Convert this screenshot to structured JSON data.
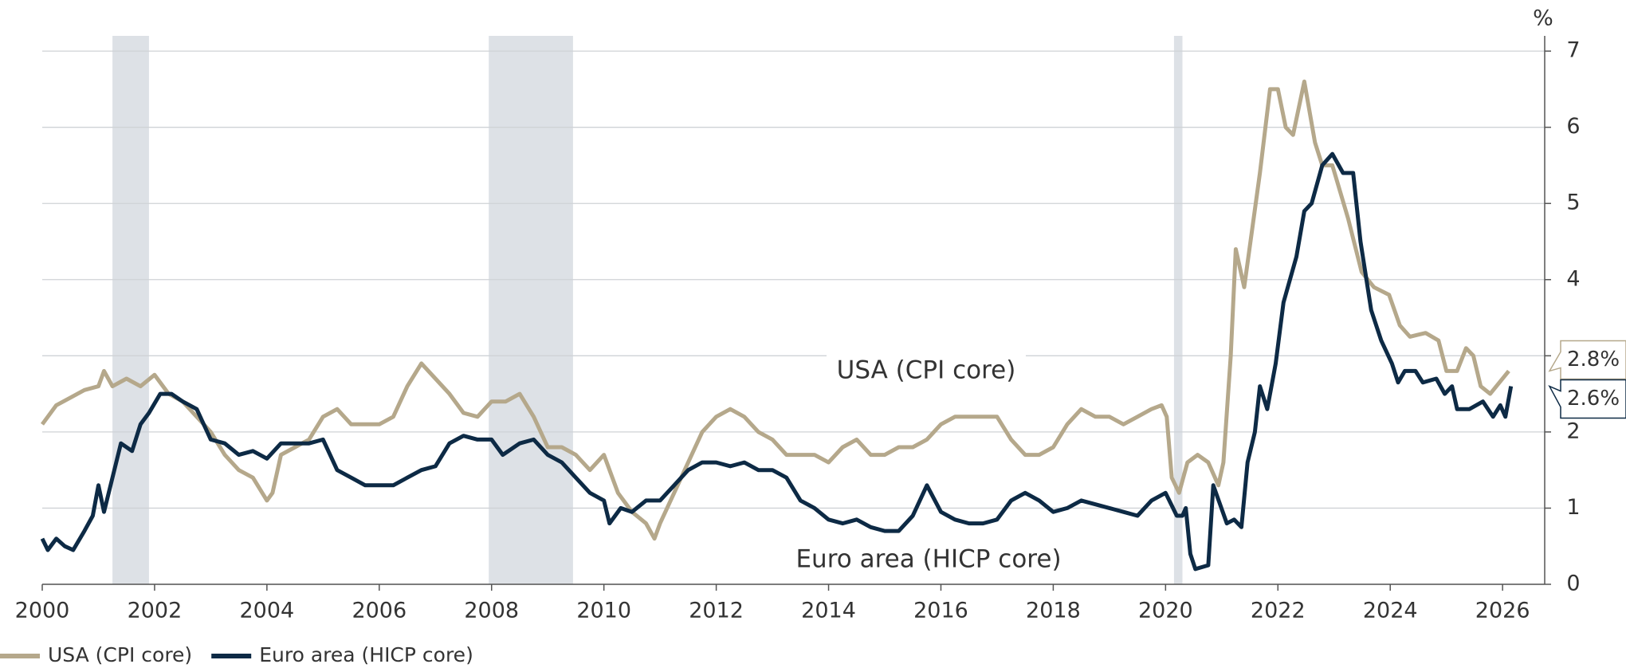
{
  "chart_data": {
    "type": "line",
    "y_unit_label": "%",
    "xlim": [
      2000,
      2026.75
    ],
    "xticks": [
      2000,
      2002,
      2004,
      2006,
      2008,
      2010,
      2012,
      2014,
      2016,
      2018,
      2020,
      2022,
      2024,
      2026
    ],
    "ylim": [
      0,
      7.2
    ],
    "yticks": [
      0,
      1,
      2,
      3,
      4,
      5,
      6,
      7
    ],
    "grid": true,
    "legend": "bottom-left",
    "shaded_periods": [
      [
        2001.25,
        2001.9
      ],
      [
        2007.95,
        2009.45
      ],
      [
        2020.15,
        2020.3
      ]
    ],
    "shade_color": "#dde1e6",
    "series": [
      {
        "name": "USA (CPI core)",
        "color": "#b5a88b",
        "x": [
          2000.0,
          2000.25,
          2000.5,
          2000.75,
          2001.0,
          2001.1,
          2001.25,
          2001.5,
          2001.75,
          2002.0,
          2002.25,
          2002.5,
          2002.75,
          2003.0,
          2003.25,
          2003.5,
          2003.75,
          2004.0,
          2004.1,
          2004.25,
          2004.5,
          2004.75,
          2005.0,
          2005.25,
          2005.5,
          2005.75,
          2006.0,
          2006.25,
          2006.5,
          2006.75,
          2007.0,
          2007.25,
          2007.5,
          2007.75,
          2008.0,
          2008.25,
          2008.5,
          2008.75,
          2009.0,
          2009.25,
          2009.5,
          2009.75,
          2010.0,
          2010.25,
          2010.5,
          2010.75,
          2010.9,
          2011.0,
          2011.25,
          2011.5,
          2011.75,
          2012.0,
          2012.25,
          2012.5,
          2012.75,
          2013.0,
          2013.25,
          2013.5,
          2013.75,
          2014.0,
          2014.25,
          2014.5,
          2014.75,
          2015.0,
          2015.25,
          2015.5,
          2015.75,
          2016.0,
          2016.25,
          2016.5,
          2016.75,
          2017.0,
          2017.25,
          2017.5,
          2017.75,
          2018.0,
          2018.25,
          2018.5,
          2018.75,
          2019.0,
          2019.25,
          2019.5,
          2019.75,
          2019.93,
          2020.02,
          2020.11,
          2020.24,
          2020.39,
          2020.57,
          2020.76,
          2020.94,
          2021.03,
          2021.16,
          2021.25,
          2021.4,
          2021.53,
          2021.68,
          2021.86,
          2022.0,
          2022.14,
          2022.27,
          2022.47,
          2022.66,
          2022.79,
          2022.97,
          2023.25,
          2023.49,
          2023.71,
          2023.98,
          2024.17,
          2024.35,
          2024.63,
          2024.86,
          2025.0,
          2025.19,
          2025.35,
          2025.48,
          2025.61,
          2025.78,
          2026.11
        ],
        "values": [
          2.1,
          2.35,
          2.45,
          2.55,
          2.6,
          2.8,
          2.6,
          2.7,
          2.6,
          2.75,
          2.5,
          2.4,
          2.2,
          2.0,
          1.7,
          1.5,
          1.4,
          1.1,
          1.2,
          1.7,
          1.8,
          1.9,
          2.2,
          2.3,
          2.1,
          2.1,
          2.1,
          2.2,
          2.6,
          2.9,
          2.7,
          2.5,
          2.25,
          2.2,
          2.4,
          2.4,
          2.5,
          2.2,
          1.8,
          1.8,
          1.7,
          1.5,
          1.7,
          1.2,
          0.95,
          0.8,
          0.6,
          0.8,
          1.2,
          1.6,
          2.0,
          2.2,
          2.3,
          2.2,
          2.0,
          1.9,
          1.7,
          1.7,
          1.7,
          1.6,
          1.8,
          1.9,
          1.7,
          1.7,
          1.8,
          1.8,
          1.9,
          2.1,
          2.2,
          2.2,
          2.2,
          2.2,
          1.9,
          1.7,
          1.7,
          1.8,
          2.1,
          2.3,
          2.2,
          2.2,
          2.1,
          2.2,
          2.3,
          2.35,
          2.2,
          1.4,
          1.2,
          1.6,
          1.7,
          1.6,
          1.3,
          1.6,
          3.0,
          4.4,
          3.9,
          4.6,
          5.4,
          6.5,
          6.5,
          6.0,
          5.9,
          6.6,
          5.8,
          5.5,
          5.5,
          4.8,
          4.1,
          3.9,
          3.8,
          3.4,
          3.25,
          3.3,
          3.2,
          2.8,
          2.8,
          3.1,
          3.0,
          2.6,
          2.5,
          2.8
        ],
        "value_labels_last": "2.8%"
      },
      {
        "name": "Euro area (HICP core)",
        "color": "#0d2a45",
        "x": [
          2000.0,
          2000.1,
          2000.25,
          2000.4,
          2000.55,
          2000.75,
          2000.9,
          2001.0,
          2001.1,
          2001.25,
          2001.4,
          2001.6,
          2001.75,
          2001.9,
          2002.1,
          2002.3,
          2002.5,
          2002.75,
          2003.0,
          2003.25,
          2003.5,
          2003.75,
          2004.0,
          2004.25,
          2004.5,
          2004.75,
          2005.0,
          2005.25,
          2005.5,
          2005.75,
          2006.0,
          2006.25,
          2006.5,
          2006.75,
          2007.0,
          2007.25,
          2007.5,
          2007.75,
          2008.0,
          2008.2,
          2008.5,
          2008.75,
          2009.0,
          2009.25,
          2009.5,
          2009.75,
          2010.0,
          2010.1,
          2010.3,
          2010.5,
          2010.75,
          2011.0,
          2011.25,
          2011.5,
          2011.75,
          2012.0,
          2012.25,
          2012.5,
          2012.75,
          2013.0,
          2013.25,
          2013.5,
          2013.75,
          2014.0,
          2014.25,
          2014.5,
          2014.75,
          2015.0,
          2015.25,
          2015.5,
          2015.75,
          2016.0,
          2016.25,
          2016.5,
          2016.75,
          2017.0,
          2017.25,
          2017.5,
          2017.75,
          2018.0,
          2018.25,
          2018.5,
          2018.75,
          2019.0,
          2019.25,
          2019.5,
          2019.75,
          2020.0,
          2020.2,
          2020.3,
          2020.36,
          2020.44,
          2020.53,
          2020.76,
          2020.85,
          2021.09,
          2021.22,
          2021.35,
          2021.46,
          2021.59,
          2021.68,
          2021.81,
          2021.96,
          2022.1,
          2022.33,
          2022.47,
          2022.6,
          2022.79,
          2022.97,
          2023.16,
          2023.34,
          2023.47,
          2023.66,
          2023.84,
          2024.03,
          2024.14,
          2024.26,
          2024.45,
          2024.58,
          2024.82,
          2024.97,
          2025.1,
          2025.19,
          2025.41,
          2025.65,
          2025.83,
          2025.96,
          2026.05,
          2026.15
        ],
        "values": [
          0.6,
          0.45,
          0.6,
          0.5,
          0.45,
          0.7,
          0.9,
          1.3,
          0.95,
          1.4,
          1.85,
          1.75,
          2.1,
          2.25,
          2.5,
          2.5,
          2.4,
          2.3,
          1.9,
          1.85,
          1.7,
          1.75,
          1.65,
          1.85,
          1.85,
          1.85,
          1.9,
          1.5,
          1.4,
          1.3,
          1.3,
          1.3,
          1.4,
          1.5,
          1.55,
          1.85,
          1.95,
          1.9,
          1.9,
          1.7,
          1.85,
          1.9,
          1.7,
          1.6,
          1.4,
          1.2,
          1.1,
          0.8,
          1.0,
          0.95,
          1.1,
          1.1,
          1.3,
          1.5,
          1.6,
          1.6,
          1.55,
          1.6,
          1.5,
          1.5,
          1.4,
          1.1,
          1.0,
          0.85,
          0.8,
          0.85,
          0.75,
          0.7,
          0.7,
          0.9,
          1.3,
          0.95,
          0.85,
          0.8,
          0.8,
          0.85,
          1.1,
          1.2,
          1.1,
          0.95,
          1.0,
          1.1,
          1.05,
          1.0,
          0.95,
          0.9,
          1.1,
          1.2,
          0.9,
          0.9,
          1.0,
          0.4,
          0.2,
          0.25,
          1.3,
          0.8,
          0.85,
          0.75,
          1.6,
          2.0,
          2.6,
          2.3,
          2.9,
          3.7,
          4.3,
          4.9,
          5.0,
          5.5,
          5.65,
          5.4,
          5.4,
          4.5,
          3.6,
          3.2,
          2.9,
          2.65,
          2.8,
          2.8,
          2.65,
          2.7,
          2.5,
          2.6,
          2.3,
          2.3,
          2.4,
          2.2,
          2.35,
          2.2,
          2.6
        ],
        "value_labels_last": "2.6%"
      }
    ]
  }
}
